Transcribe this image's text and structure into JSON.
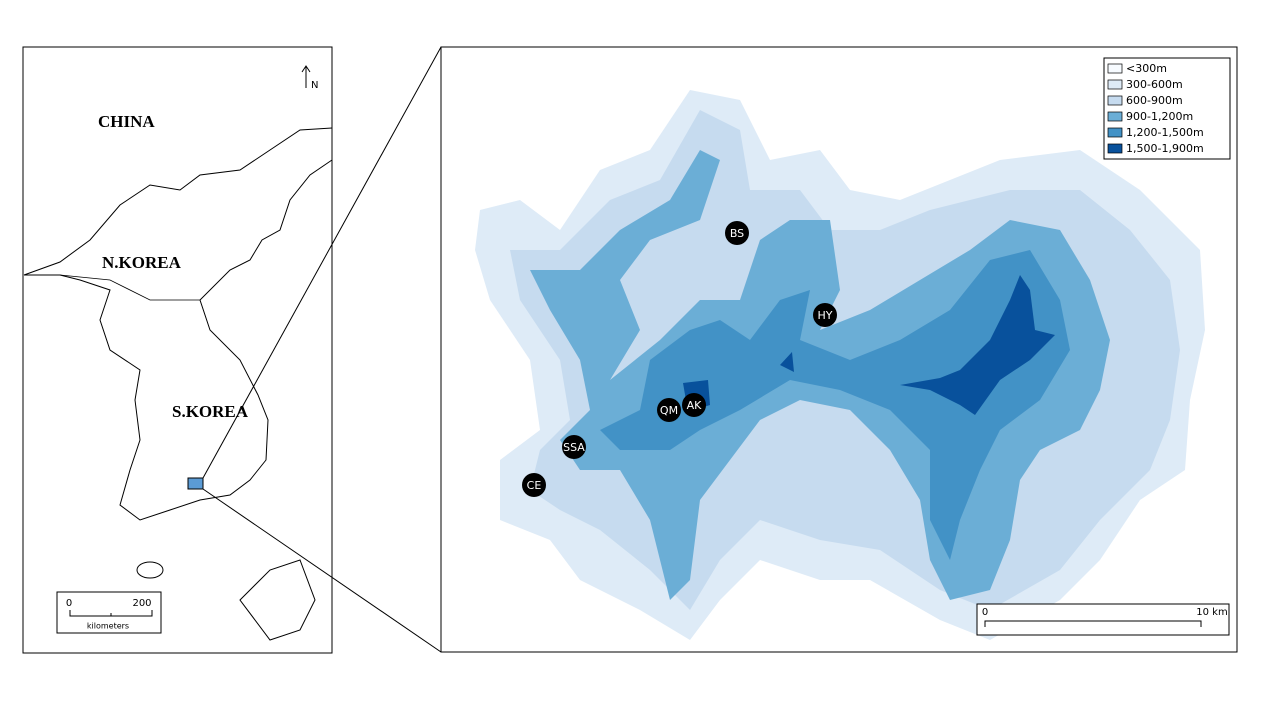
{
  "overview_map": {
    "labels": [
      "CHINA",
      "N.KOREA",
      "S.KOREA"
    ],
    "north_arrow": "N",
    "scale": {
      "ticks": [
        "0",
        "200"
      ],
      "unit": "kilometers"
    }
  },
  "detail_map": {
    "legend": [
      {
        "label": "<300m",
        "color": "#f7fbff"
      },
      {
        "label": "300-600m",
        "color": "#deebf7"
      },
      {
        "label": "600-900m",
        "color": "#c6dbef"
      },
      {
        "label": "900-1,200m",
        "color": "#6baed6"
      },
      {
        "label": "1,200-1,500m",
        "color": "#4292c6"
      },
      {
        "label": "1,500-1,900m",
        "color": "#08519c"
      }
    ],
    "sites": [
      "BS",
      "HY",
      "AK",
      "QM",
      "SSA",
      "CE"
    ],
    "scale": {
      "ticks": [
        "0",
        "10 km"
      ]
    }
  }
}
